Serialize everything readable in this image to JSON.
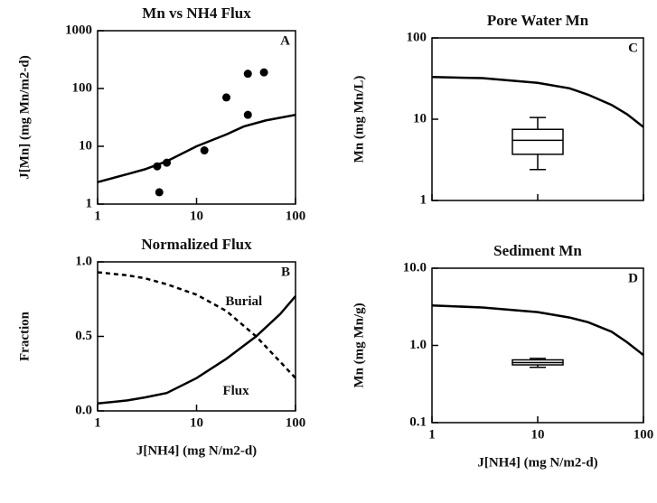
{
  "chart_data": [
    {
      "type": "line",
      "title": "Mn vs NH4 Flux",
      "panel": "A",
      "ylabel": "J[Mn] (mg Mn/m2-d)",
      "xscale": "log",
      "yscale": "log",
      "xlim": [
        1,
        100
      ],
      "ylim": [
        1,
        1000
      ],
      "xticks": [
        1,
        10,
        100
      ],
      "yticks": [
        1,
        10,
        100,
        1000
      ],
      "series": [
        {
          "type": "line",
          "color": "#000",
          "x": [
            1,
            2,
            3,
            5,
            10,
            20,
            30,
            50,
            100
          ],
          "values": [
            2.4,
            3.3,
            4.0,
            5.5,
            10,
            16,
            22,
            28,
            35
          ]
        },
        {
          "type": "scatter",
          "color": "#000",
          "x": [
            4,
            4.2,
            5,
            12,
            20,
            33,
            33,
            48
          ],
          "values": [
            4.5,
            1.6,
            5.2,
            8.5,
            70,
            35,
            180,
            190
          ]
        }
      ]
    },
    {
      "type": "line",
      "title": "Normalized Flux",
      "panel": "B",
      "ylabel": "Fraction",
      "xlabel": "J[NH4] (mg N/m2-d)",
      "xscale": "log",
      "yscale": "linear",
      "xlim": [
        1,
        100
      ],
      "ylim": [
        0,
        1
      ],
      "xticks": [
        1,
        10,
        100
      ],
      "yticks": [
        {
          "value": 0,
          "label": "0.0"
        },
        0.5,
        {
          "value": 1,
          "label": "1.0"
        }
      ],
      "annotations": [
        {
          "text": "Burial",
          "x": 30,
          "y": 0.73
        },
        {
          "text": "Flux",
          "x": 25,
          "y": 0.13
        }
      ],
      "series": [
        {
          "type": "line",
          "dash": true,
          "color": "#000",
          "x": [
            1,
            2,
            3,
            5,
            10,
            20,
            40,
            70,
            100
          ],
          "values": [
            0.93,
            0.91,
            0.89,
            0.85,
            0.78,
            0.67,
            0.5,
            0.33,
            0.22
          ]
        },
        {
          "type": "line",
          "color": "#000",
          "x": [
            1,
            2,
            3,
            5,
            10,
            20,
            40,
            70,
            100
          ],
          "values": [
            0.05,
            0.07,
            0.09,
            0.12,
            0.22,
            0.35,
            0.5,
            0.65,
            0.77
          ]
        }
      ]
    },
    {
      "type": "line",
      "title": "Pore Water Mn",
      "panel": "C",
      "ylabel": "Mn (mg Mn/L)",
      "xscale": "log",
      "yscale": "log",
      "xlim": [
        1,
        100
      ],
      "ylim": [
        1,
        100
      ],
      "xticks": [
        1,
        10,
        100
      ],
      "xtick_labels": false,
      "yticks": [
        1,
        10,
        100
      ],
      "box": {
        "x": 10,
        "min": 2.4,
        "q1": 3.7,
        "median": 5.5,
        "q3": 7.5,
        "max": 10.5
      },
      "series": [
        {
          "type": "line",
          "color": "#000",
          "x": [
            1,
            3,
            10,
            20,
            30,
            50,
            70,
            100
          ],
          "values": [
            33,
            32,
            28,
            24,
            20,
            15,
            11.5,
            8
          ]
        }
      ]
    },
    {
      "type": "line",
      "title": "Sediment Mn",
      "panel": "D",
      "ylabel": "Mn (mg Mn/g)",
      "xlabel": "J[NH4] (mg N/m2-d)",
      "xscale": "log",
      "yscale": "log",
      "xlim": [
        1,
        100
      ],
      "ylim": [
        0.1,
        10
      ],
      "xticks": [
        1,
        10,
        100
      ],
      "yticks": [
        {
          "value": 0.1,
          "label": "0.1"
        },
        {
          "value": 1,
          "label": "1.0"
        },
        {
          "value": 10,
          "label": "10.0"
        }
      ],
      "box": {
        "x": 10,
        "min": 0.52,
        "q1": 0.56,
        "median": 0.6,
        "q3": 0.65,
        "max": 0.68
      },
      "series": [
        {
          "type": "line",
          "color": "#000",
          "x": [
            1,
            3,
            10,
            20,
            30,
            50,
            70,
            100
          ],
          "values": [
            3.3,
            3.1,
            2.7,
            2.3,
            2.0,
            1.5,
            1.1,
            0.75
          ]
        }
      ]
    }
  ]
}
